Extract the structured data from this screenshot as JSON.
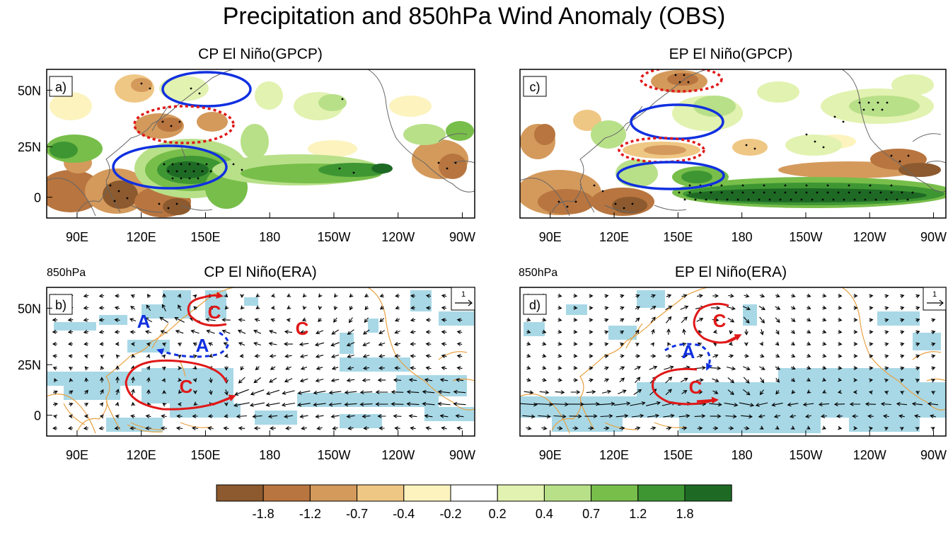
{
  "figure": {
    "title": "Precipitation and 850hPa Wind Anomaly (OBS)"
  },
  "panels": [
    {
      "id": "a",
      "label": "a)",
      "title": "CP El Niño(GPCP)",
      "level": "",
      "kind": "precip",
      "ellipses": [
        {
          "kind": "blue-solid"
        },
        {
          "kind": "red-dotted"
        },
        {
          "kind": "blue-solid"
        }
      ]
    },
    {
      "id": "b",
      "label": "b)",
      "title": "CP El Niño(ERA)",
      "level": "850hPa",
      "kind": "wind",
      "ref_vector_label": "1",
      "letters": [
        "A",
        "A",
        "C",
        "C",
        "C"
      ]
    },
    {
      "id": "c",
      "label": "c)",
      "title": "EP El Niño(GPCP)",
      "level": "",
      "kind": "precip",
      "ellipses": [
        {
          "kind": "red-dotted"
        },
        {
          "kind": "blue-solid"
        },
        {
          "kind": "red-dotted"
        },
        {
          "kind": "blue-solid"
        }
      ]
    },
    {
      "id": "d",
      "label": "d)",
      "title": "EP El Niño(ERA)",
      "level": "850hPa",
      "kind": "wind",
      "ref_vector_label": "1",
      "letters": [
        "A",
        "C",
        "C"
      ]
    }
  ],
  "axes": {
    "x_ticks": [
      "90E",
      "120E",
      "150E",
      "180",
      "150W",
      "120W",
      "90W"
    ],
    "y_ticks": [
      "50N",
      "25N",
      "0"
    ]
  },
  "colorbar": {
    "labels": [
      "-1.8",
      "-1.2",
      "-0.7",
      "-0.4",
      "-0.2",
      "0.2",
      "0.4",
      "0.7",
      "1.2",
      "1.8"
    ],
    "colors": [
      "#8c5a2e",
      "#b8753f",
      "#d49a5c",
      "#efc785",
      "#fcf3bf",
      "#ffffff",
      "#e2f2b0",
      "#b8e089",
      "#78be4a",
      "#3e9633",
      "#1e6a25"
    ]
  },
  "colors": {
    "shade": "#a8d8e6",
    "coast_wind": "#e8a040",
    "coast_precip": "#666666",
    "blue": "#1030e0",
    "red": "#e01818"
  }
}
